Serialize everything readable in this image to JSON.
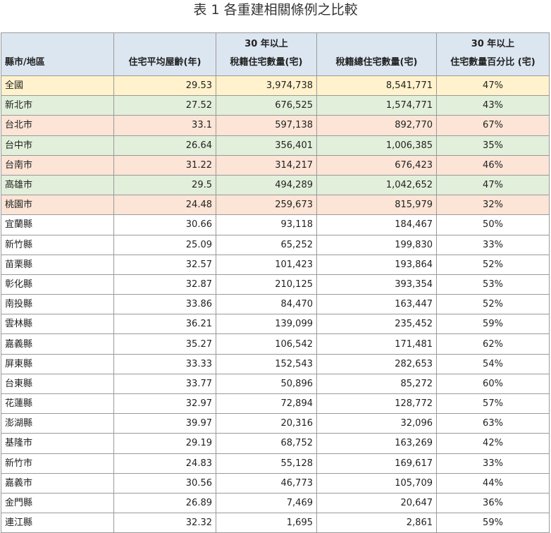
{
  "title": "表 1  各重建相關條例之比較",
  "headers": {
    "col1": "縣市/地區",
    "col2": "住宅平均屋齡(年)",
    "col3_line1": "30 年以上",
    "col3_line2": "稅籍住宅數量(宅)",
    "col4": "稅籍總住宅數量(宅)",
    "col5_line1": "30 年以上",
    "col5_line2": "住宅數量百分比 (宅)"
  },
  "colors": {
    "header_bg": "#dce6f1",
    "highlight_yellow": "#fff2cc",
    "highlight_green": "#e2efda",
    "highlight_red": "#fce4d6"
  },
  "rows": [
    {
      "name": "全國",
      "age": "29.53",
      "old": "3,974,738",
      "total": "8,541,771",
      "pct": "47%",
      "hl": "yellow"
    },
    {
      "name": "新北市",
      "age": "27.52",
      "old": "676,525",
      "total": "1,574,771",
      "pct": "43%",
      "hl": "green"
    },
    {
      "name": "台北市",
      "age": "33.1",
      "old": "597,138",
      "total": "892,770",
      "pct": "67%",
      "hl": "red"
    },
    {
      "name": "台中市",
      "age": "26.64",
      "old": "356,401",
      "total": "1,006,385",
      "pct": "35%",
      "hl": "green"
    },
    {
      "name": "台南市",
      "age": "31.22",
      "old": "314,217",
      "total": "676,423",
      "pct": "46%",
      "hl": "red"
    },
    {
      "name": "高雄市",
      "age": "29.5",
      "old": "494,289",
      "total": "1,042,652",
      "pct": "47%",
      "hl": "green"
    },
    {
      "name": "桃園市",
      "age": "24.48",
      "old": "259,673",
      "total": "815,979",
      "pct": "32%",
      "hl": "red"
    },
    {
      "name": "宜蘭縣",
      "age": "30.66",
      "old": "93,118",
      "total": "184,467",
      "pct": "50%",
      "hl": ""
    },
    {
      "name": "新竹縣",
      "age": "25.09",
      "old": "65,252",
      "total": "199,830",
      "pct": "33%",
      "hl": ""
    },
    {
      "name": "苗栗縣",
      "age": "32.57",
      "old": "101,423",
      "total": "193,864",
      "pct": "52%",
      "hl": ""
    },
    {
      "name": "彰化縣",
      "age": "32.87",
      "old": "210,125",
      "total": "393,354",
      "pct": "53%",
      "hl": ""
    },
    {
      "name": "南投縣",
      "age": "33.86",
      "old": "84,470",
      "total": "163,447",
      "pct": "52%",
      "hl": ""
    },
    {
      "name": "雲林縣",
      "age": "36.21",
      "old": "139,099",
      "total": "235,452",
      "pct": "59%",
      "hl": ""
    },
    {
      "name": "嘉義縣",
      "age": "35.27",
      "old": "106,542",
      "total": "171,481",
      "pct": "62%",
      "hl": ""
    },
    {
      "name": "屏東縣",
      "age": "33.33",
      "old": "152,543",
      "total": "282,653",
      "pct": "54%",
      "hl": ""
    },
    {
      "name": "台東縣",
      "age": "33.77",
      "old": "50,896",
      "total": "85,272",
      "pct": "60%",
      "hl": ""
    },
    {
      "name": "花蓮縣",
      "age": "32.97",
      "old": "72,894",
      "total": "128,772",
      "pct": "57%",
      "hl": ""
    },
    {
      "name": "澎湖縣",
      "age": "39.97",
      "old": "20,316",
      "total": "32,096",
      "pct": "63%",
      "hl": ""
    },
    {
      "name": "基隆市",
      "age": "29.19",
      "old": "68,752",
      "total": "163,269",
      "pct": "42%",
      "hl": ""
    },
    {
      "name": "新竹市",
      "age": "24.83",
      "old": "55,128",
      "total": "169,617",
      "pct": "33%",
      "hl": ""
    },
    {
      "name": "嘉義市",
      "age": "30.56",
      "old": "46,773",
      "total": "105,709",
      "pct": "44%",
      "hl": ""
    },
    {
      "name": "金門縣",
      "age": "26.89",
      "old": "7,469",
      "total": "20,647",
      "pct": "36%",
      "hl": ""
    },
    {
      "name": "連江縣",
      "age": "32.32",
      "old": "1,695",
      "total": "2,861",
      "pct": "59%",
      "hl": ""
    }
  ]
}
